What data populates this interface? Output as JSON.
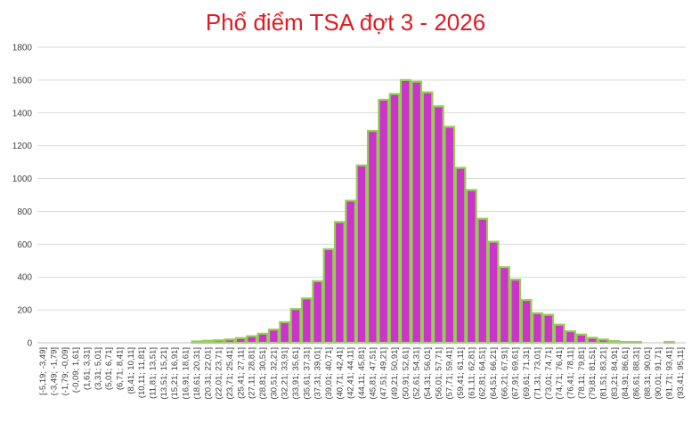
{
  "chart_data": {
    "type": "bar",
    "title": "Phổ điểm TSA đợt 3 - 2026",
    "xlabel": "",
    "ylabel": "",
    "ylim": [
      0,
      1800
    ],
    "yticks": [
      "0",
      "200",
      "400",
      "600",
      "800",
      "1000",
      "1200",
      "1400",
      "1600",
      "1800"
    ],
    "grid": true,
    "legend": "none",
    "colors": {
      "title": "#e01b24",
      "bar_fill": "#cc33cc",
      "bar_edge": "#92d050"
    },
    "categories": [
      "[-5,19; -3,49]",
      "(-3,49; -1,79]",
      "(-1,79; -0,09]",
      "(-0,09; 1,61]",
      "(1,61; 3,31]",
      "(3,31; 5,01]",
      "(5,01; 6,71]",
      "(6,71; 8,41]",
      "(8,41; 10,11]",
      "(10,11; 11,81]",
      "(11,81; 13,51]",
      "(13,51; 15,21]",
      "(15,21; 16,91]",
      "(16,91; 18,61]",
      "(18,61; 20,31]",
      "(20,31; 22,01]",
      "(22,01; 23,71]",
      "(23,71; 25,41]",
      "(25,41; 27,11]",
      "(27,11; 28,81]",
      "(28,81; 30,51]",
      "(30,51; 32,21]",
      "(32,21; 33,91]",
      "(33,91; 35,61]",
      "(35,61; 37,31]",
      "(37,31; 39,01]",
      "(39,01; 40,71]",
      "(40,71; 42,41]",
      "(42,41; 44,11]",
      "(44,11; 45,81]",
      "(45,81; 47,51]",
      "(47,51; 49,21]",
      "(49,21; 50,91]",
      "(50,91; 52,61]",
      "(52,61; 54,31]",
      "(54,31; 56,01]",
      "(56,01; 57,71]",
      "(57,71; 59,41]",
      "(59,41; 61,11]",
      "(61,11; 62,81]",
      "(62,81; 64,51]",
      "(64,51; 66,21]",
      "(66,21; 67,91]",
      "(67,91; 69,61]",
      "(69,61; 71,31]",
      "(71,31; 73,01]",
      "(73,01; 74,71]",
      "(74,71; 76,41]",
      "(76,41; 78,11]",
      "(78,11; 79,81]",
      "(79,81; 81,51]",
      "(81,51; 83,21]",
      "(83,21; 84,91]",
      "(84,91; 86,61]",
      "(86,61; 88,31]",
      "(88,31; 90,01]",
      "(90,01; 91,71]",
      "(91,71; 93,41]",
      "(93,41; 95,11]"
    ],
    "values": [
      0,
      0,
      0,
      0,
      0,
      0,
      0,
      0,
      0,
      0,
      0,
      0,
      0,
      0,
      8,
      12,
      15,
      20,
      28,
      40,
      55,
      80,
      125,
      205,
      270,
      375,
      570,
      735,
      865,
      1080,
      1290,
      1480,
      1515,
      1600,
      1590,
      1525,
      1440,
      1315,
      1065,
      930,
      755,
      615,
      460,
      385,
      260,
      180,
      170,
      110,
      70,
      50,
      30,
      20,
      10,
      5,
      5,
      0,
      0,
      5,
      0
    ]
  }
}
